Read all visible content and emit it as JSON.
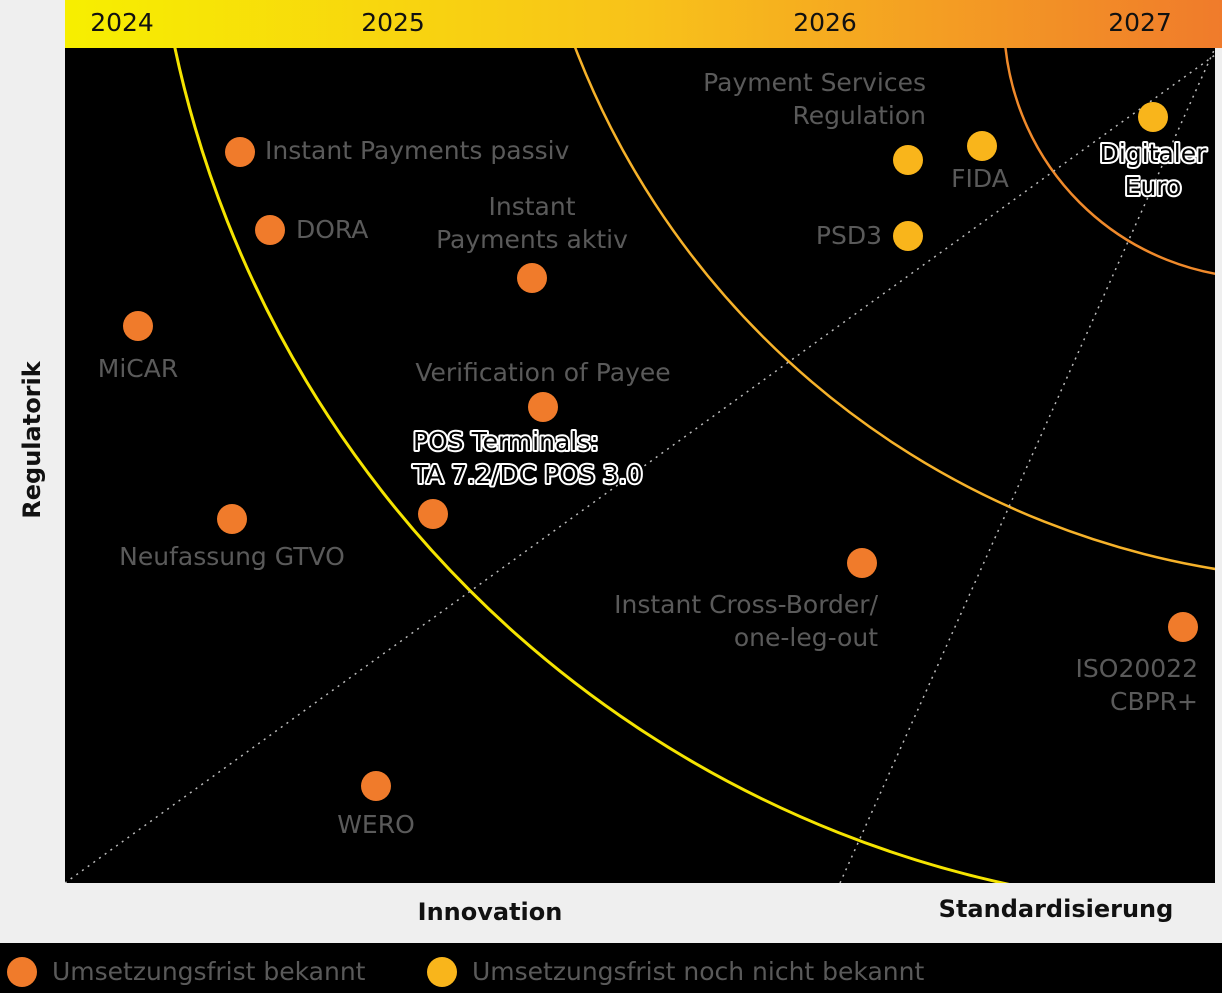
{
  "years": [
    "2024",
    "2025",
    "2026",
    "2027"
  ],
  "axes": {
    "y": "Regulatorik",
    "x_left": "Innovation",
    "x_right": "Standardisierung"
  },
  "nodes": [
    {
      "lines": [
        "Instant Payments passiv"
      ],
      "color": "#f07b2b"
    },
    {
      "lines": [
        "DORA"
      ],
      "color": "#f07b2b"
    },
    {
      "lines": [
        "Instant",
        "Payments aktiv"
      ],
      "color": "#f07b2b"
    },
    {
      "lines": [
        "MiCAR"
      ],
      "color": "#f07b2b"
    },
    {
      "lines": [
        "Verification of Payee"
      ],
      "color": "#f07b2b"
    },
    {
      "lines": [
        "POS Terminals:",
        "TA 7.2/DC POS 3.0"
      ],
      "color": "#f07b2b",
      "highlight": true
    },
    {
      "lines": [
        "Neufassung GTVO"
      ],
      "color": "#f07b2b"
    },
    {
      "lines": [
        "Instant Cross-Border/",
        "one-leg-out"
      ],
      "color": "#f07b2b"
    },
    {
      "lines": [
        "ISO20022",
        "CBPR+"
      ],
      "color": "#f07b2b"
    },
    {
      "lines": [
        "WERO"
      ],
      "color": "#f07b2b"
    },
    {
      "lines": [
        "Payment Services",
        "Regulation"
      ],
      "color": "#f9b51b"
    },
    {
      "lines": [
        "FIDA"
      ],
      "color": "#f9b51b"
    },
    {
      "lines": [
        "PSD3"
      ],
      "color": "#f9b51b"
    },
    {
      "lines": [
        "Digitaler",
        "Euro"
      ],
      "color": "#f9b51b",
      "highlight": true
    }
  ],
  "legend": [
    {
      "label": "Umsetzungsfrist bekannt",
      "color": "#f07b2b"
    },
    {
      "label": "Umsetzungsfrist noch nicht bekannt",
      "color": "#f9b51b"
    }
  ]
}
